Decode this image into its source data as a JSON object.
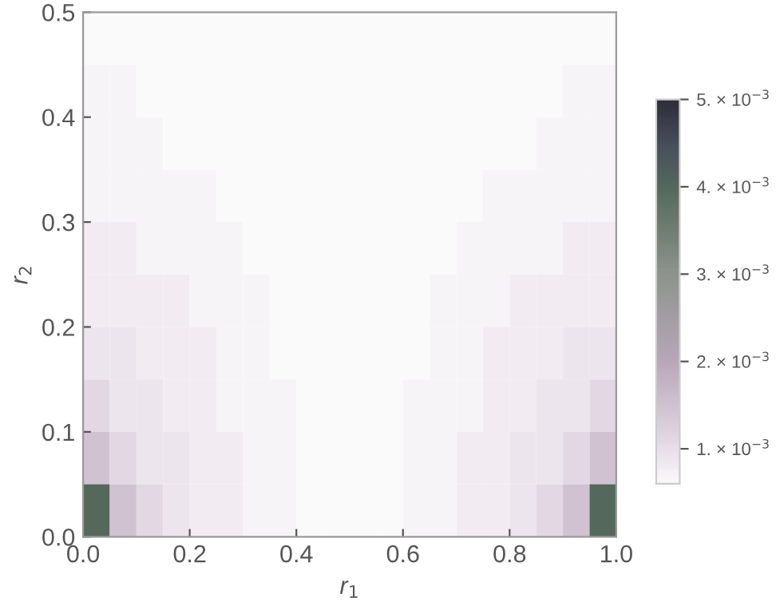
{
  "chart_data": {
    "type": "heatmap",
    "xlabel": "r$_{1}$",
    "ylabel": "r$_{2}$",
    "xlim": [
      0,
      1
    ],
    "xticks": [
      {
        "value": 0,
        "label": "0.0"
      },
      {
        "value": 0.2,
        "label": "0.2"
      },
      {
        "value": 0.4,
        "label": "0.4"
      },
      {
        "value": 0.6,
        "label": "0.6"
      },
      {
        "value": 0.8,
        "label": "0.8"
      },
      {
        "value": 1,
        "label": "1.0"
      }
    ],
    "ylim": [
      0,
      0.5
    ],
    "yticks": [
      {
        "value": 0,
        "label": "0.0"
      },
      {
        "value": 0.1,
        "label": "0.1"
      },
      {
        "value": 0.2,
        "label": "0.2"
      },
      {
        "value": 0.3,
        "label": "0.3"
      },
      {
        "value": 0.4,
        "label": "0.4"
      },
      {
        "value": 0.5,
        "label": "0.5"
      }
    ],
    "clim": [
      0.0006,
      0.005
    ],
    "cticks": [
      {
        "value": 0.001,
        "label": "1. × 10$^{−3}$"
      },
      {
        "value": 0.002,
        "label": "2. × 10$^{−3}$"
      },
      {
        "value": 0.003,
        "label": "3. × 10$^{−3}$"
      },
      {
        "value": 0.004,
        "label": "4. × 10$^{−3}$"
      },
      {
        "value": 0.005,
        "label": "5. × 10$^{−3}$"
      }
    ],
    "cells": [
      [
        0.0006,
        0.0006,
        0.0006,
        0.0006,
        0.0006,
        0.0006,
        0.0006,
        0.0006,
        0.0006,
        0.0006,
        0.0006,
        0.0006,
        0.0006,
        0.0006,
        0.0006,
        0.0006,
        0.0006,
        0.0006,
        0.0006,
        0.0006
      ],
      [
        0.0007,
        0.0007,
        0.0006,
        0.0006,
        0.0006,
        0.0006,
        0.0006,
        0.0006,
        0.0006,
        0.0006,
        0.0006,
        0.0006,
        0.0006,
        0.0006,
        0.0006,
        0.0006,
        0.0006,
        0.0006,
        0.0007,
        0.0007
      ],
      [
        0.0007,
        0.0007,
        0.0007,
        0.0006,
        0.0006,
        0.0006,
        0.0006,
        0.0006,
        0.0006,
        0.0006,
        0.0006,
        0.0006,
        0.0006,
        0.0006,
        0.0006,
        0.0006,
        0.0006,
        0.0007,
        0.0007,
        0.0007
      ],
      [
        0.0007,
        0.0007,
        0.0007,
        0.0007,
        0.0007,
        0.0006,
        0.0006,
        0.0006,
        0.0006,
        0.0006,
        0.0006,
        0.0006,
        0.0006,
        0.0006,
        0.0006,
        0.0007,
        0.0007,
        0.0007,
        0.0007,
        0.0007
      ],
      [
        0.0008,
        0.0008,
        0.0007,
        0.0007,
        0.0007,
        0.0007,
        0.0006,
        0.0006,
        0.0006,
        0.0006,
        0.0006,
        0.0006,
        0.0006,
        0.0006,
        0.0007,
        0.0007,
        0.0007,
        0.0007,
        0.0008,
        0.0008
      ],
      [
        0.0008,
        0.0008,
        0.0008,
        0.0008,
        0.0007,
        0.0007,
        0.0007,
        0.0006,
        0.0006,
        0.0006,
        0.0006,
        0.0006,
        0.0006,
        0.0007,
        0.0007,
        0.0007,
        0.0008,
        0.0008,
        0.0008,
        0.0008
      ],
      [
        0.0009,
        0.0009,
        0.0008,
        0.0008,
        0.0008,
        0.0007,
        0.0007,
        0.0006,
        0.0006,
        0.0006,
        0.0006,
        0.0006,
        0.0006,
        0.0007,
        0.0007,
        0.0008,
        0.0008,
        0.0008,
        0.0009,
        0.0009
      ],
      [
        0.0011,
        0.0009,
        0.0009,
        0.0008,
        0.0008,
        0.0007,
        0.0007,
        0.0007,
        0.0006,
        0.0006,
        0.0006,
        0.0006,
        0.0007,
        0.0007,
        0.0007,
        0.0008,
        0.0008,
        0.0009,
        0.0009,
        0.0011
      ],
      [
        0.0015,
        0.0011,
        0.0009,
        0.0009,
        0.0008,
        0.0008,
        0.0007,
        0.0007,
        0.0006,
        0.0006,
        0.0006,
        0.0006,
        0.0007,
        0.0007,
        0.0008,
        0.0008,
        0.0009,
        0.0009,
        0.0011,
        0.0015
      ],
      [
        0.004,
        0.0015,
        0.0011,
        0.0009,
        0.0008,
        0.0008,
        0.0007,
        0.0007,
        0.0006,
        0.0006,
        0.0006,
        0.0006,
        0.0007,
        0.0007,
        0.0008,
        0.0008,
        0.0009,
        0.0011,
        0.0015,
        0.004
      ]
    ]
  }
}
